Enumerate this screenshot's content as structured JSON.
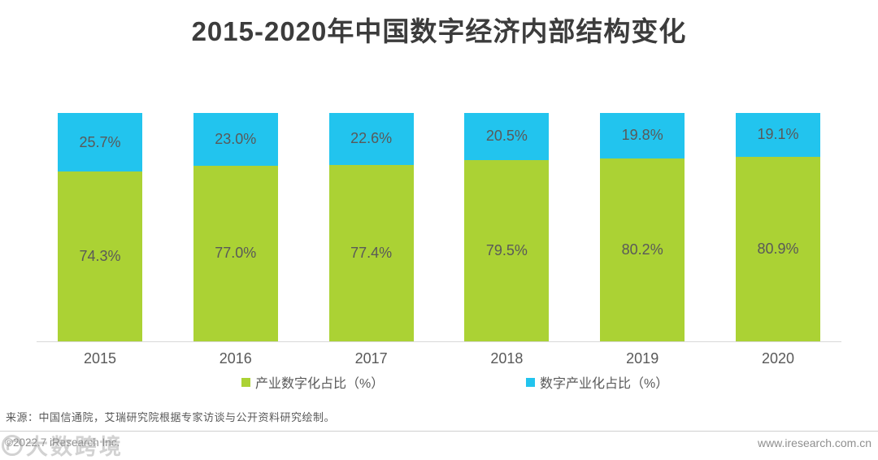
{
  "title": "2015-2020年中国数字经济内部结构变化",
  "chart_data": {
    "type": "bar",
    "subtype": "stacked-100-percent-column",
    "title": "2015-2020年中国数字经济内部结构变化",
    "categories": [
      "2015",
      "2016",
      "2017",
      "2018",
      "2019",
      "2020"
    ],
    "series": [
      {
        "name": "产业数字化占比（%）",
        "color": "#abd234",
        "values": [
          74.3,
          77.0,
          77.4,
          79.5,
          80.2,
          80.9
        ]
      },
      {
        "name": "数字产业化占比（%）",
        "color": "#22c4ee",
        "values": [
          25.7,
          23.0,
          22.6,
          20.5,
          19.8,
          19.1
        ]
      }
    ],
    "value_label_format": "{value}%",
    "ylim": [
      0,
      100
    ],
    "grid": false,
    "y_axis_visible": false,
    "legend_position": "bottom"
  },
  "legend": {
    "industry_digitalization": "产业数字化占比（%）",
    "digital_industrialization": "数字产业化占比（%）"
  },
  "colors": {
    "green": "#abd234",
    "blue": "#22c4ee",
    "label_gray": "#595959",
    "title_gray": "#3c3c3c"
  },
  "footer": {
    "source": "来源：中国信通院，艾瑞研究院根据专家访谈与公开资料研究绘制。",
    "copyright": "©2022.7 iResearch Inc.",
    "website": "www.iresearch.com.cn",
    "watermark": "大数跨境"
  }
}
